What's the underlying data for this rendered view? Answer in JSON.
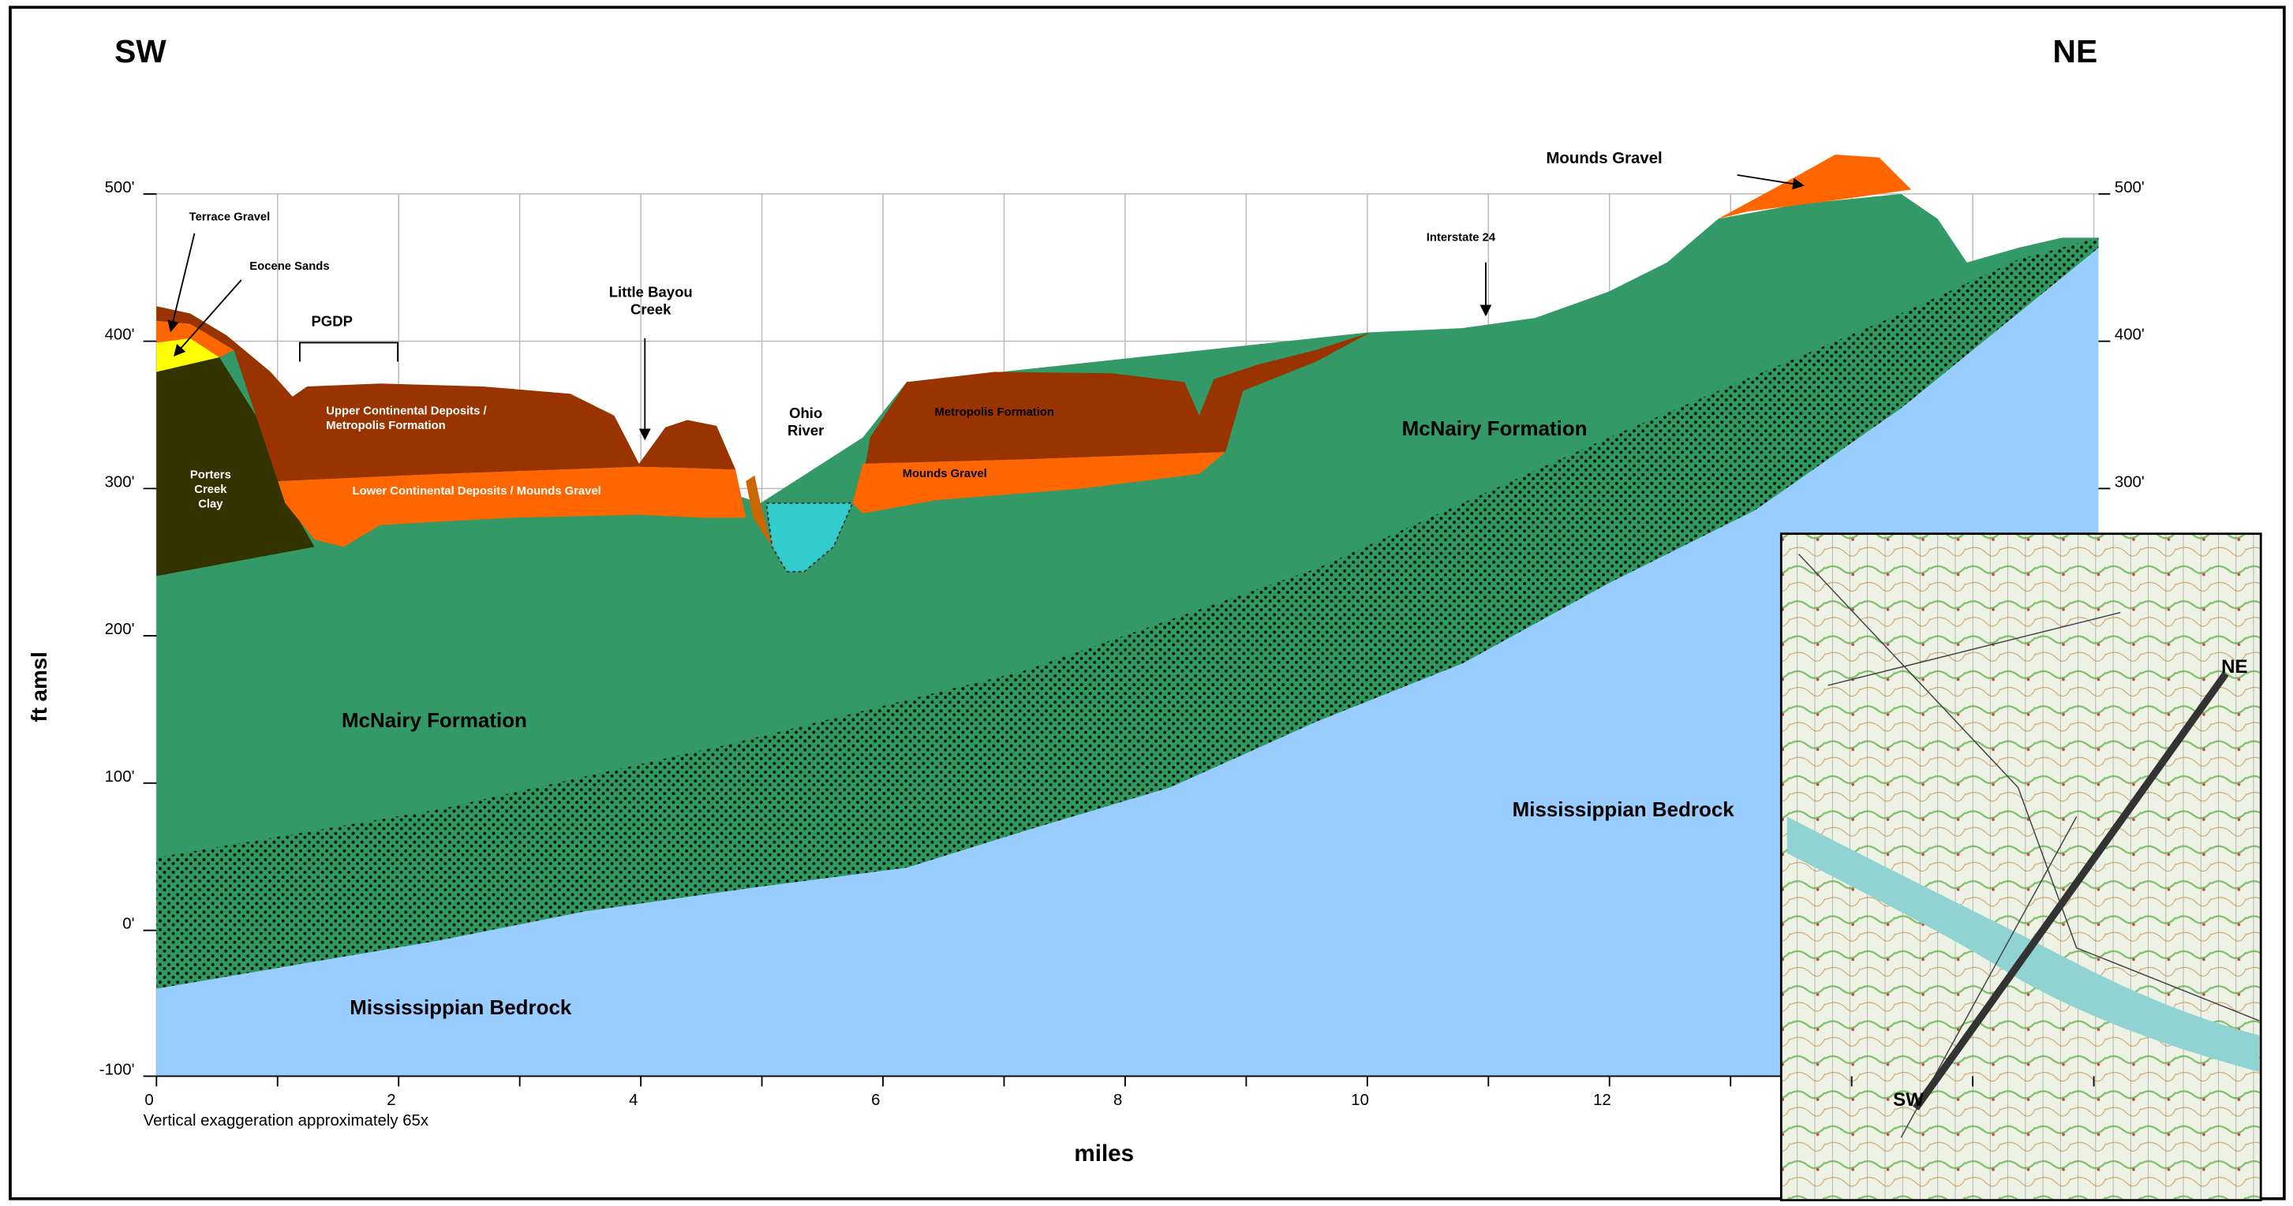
{
  "header": {
    "left": "SW",
    "right": "NE"
  },
  "axes": {
    "y_label": "ft amsl",
    "x_label": "miles",
    "y_ticks_left": [
      "500'",
      "400'",
      "300'",
      "200'",
      "100'",
      "0'",
      "-100'"
    ],
    "y_ticks_right": [
      "500'",
      "400'",
      "300'"
    ],
    "x_ticks": [
      "0",
      "2",
      "4",
      "6",
      "8",
      "10",
      "12"
    ],
    "note": "Vertical exaggeration approximately 65x"
  },
  "labels": [
    [
      "Terrace Gravel"
    ],
    [
      "Eocene Sands"
    ],
    [
      "PGDP"
    ],
    [
      "Little Bayou",
      "Creek"
    ],
    [
      "Upper Continental Deposits /",
      "Metropolis Formation"
    ],
    [
      "Porters",
      "Creek",
      "Clay"
    ],
    [
      "Lower Continental Deposits / Mounds Gravel"
    ],
    [
      "Ohio",
      "River"
    ],
    [
      "Metropolis Formation"
    ],
    [
      "Mounds Gravel"
    ],
    [
      "Interstate 24"
    ],
    [
      "Mounds Gravel"
    ],
    [
      "McNairy Formation"
    ],
    [
      "McNairy Formation"
    ],
    [
      "Mississippian Bedrock"
    ],
    [
      "Mississippian Bedrock"
    ]
  ],
  "map": {
    "sw": "SW",
    "ne": "NE"
  }
}
